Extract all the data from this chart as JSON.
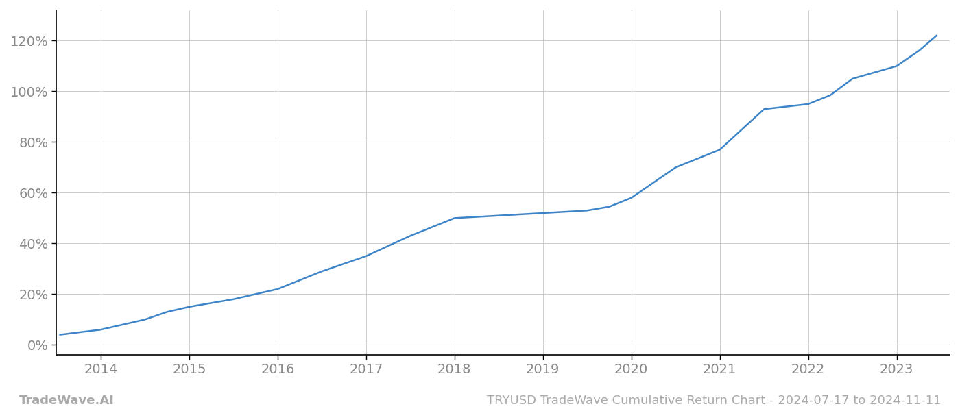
{
  "x_years": [
    2013.54,
    2014.0,
    2014.25,
    2014.5,
    2014.75,
    2015.0,
    2015.25,
    2015.5,
    2015.75,
    2016.0,
    2016.25,
    2016.5,
    2016.75,
    2017.0,
    2017.25,
    2017.5,
    2017.75,
    2018.0,
    2018.25,
    2018.5,
    2018.75,
    2019.0,
    2019.25,
    2019.5,
    2019.75,
    2020.0,
    2020.25,
    2020.5,
    2020.75,
    2021.0,
    2021.25,
    2021.5,
    2021.75,
    2022.0,
    2022.25,
    2022.5,
    2022.75,
    2023.0,
    2023.25,
    2023.45
  ],
  "y_values": [
    0.04,
    0.06,
    0.08,
    0.1,
    0.13,
    0.15,
    0.165,
    0.18,
    0.2,
    0.22,
    0.255,
    0.29,
    0.32,
    0.35,
    0.39,
    0.43,
    0.465,
    0.5,
    0.505,
    0.51,
    0.515,
    0.52,
    0.525,
    0.53,
    0.545,
    0.58,
    0.64,
    0.7,
    0.735,
    0.77,
    0.85,
    0.93,
    0.94,
    0.95,
    0.985,
    1.05,
    1.075,
    1.1,
    1.16,
    1.22
  ],
  "line_color": "#3d85c8",
  "line_width": 1.8,
  "grid_color": "#cccccc",
  "bg_color": "#ffffff",
  "plot_bg_color": "#ffffff",
  "yticks": [
    0.0,
    0.2,
    0.4,
    0.6,
    0.8,
    1.0,
    1.2
  ],
  "ytick_labels": [
    "0%",
    "20%",
    "40%",
    "60%",
    "80%",
    "100%",
    "120%"
  ],
  "xticks": [
    2014,
    2015,
    2016,
    2017,
    2018,
    2019,
    2020,
    2021,
    2022,
    2023
  ],
  "xlim": [
    2013.5,
    2023.6
  ],
  "ylim": [
    -0.04,
    1.32
  ],
  "ylabel_fontsize": 14,
  "xlabel_fontsize": 14,
  "tick_color": "#888888",
  "spine_color": "#000000",
  "watermark_left": "TradeWave.AI",
  "watermark_right": "TRYUSD TradeWave Cumulative Return Chart - 2024-07-17 to 2024-11-11",
  "watermark_fontsize": 13,
  "watermark_color": "#aaaaaa"
}
